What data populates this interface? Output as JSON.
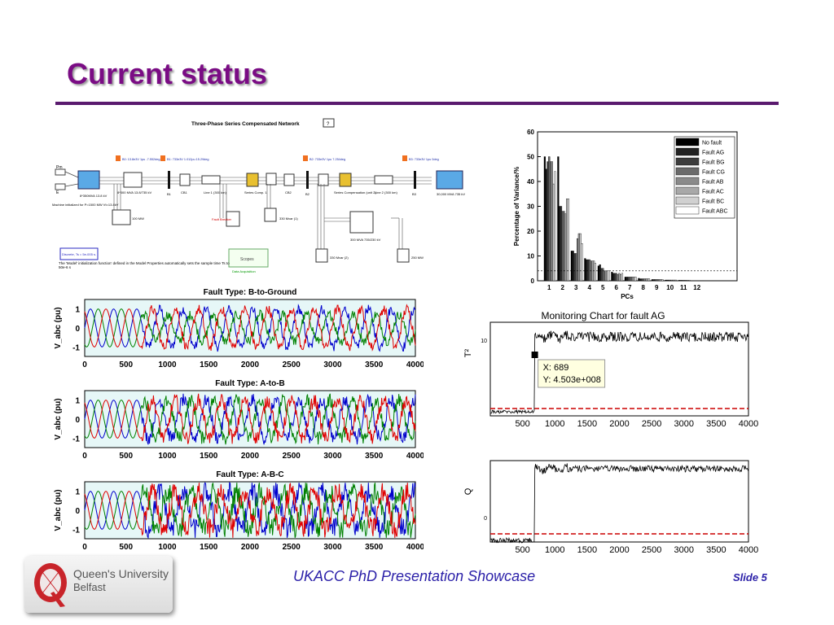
{
  "slide": {
    "title": "Current status",
    "footer": "UKACC PhD Presentation Showcase",
    "slide_number": "Slide 5",
    "logo": {
      "line1": "Queen's University",
      "line2": "Belfast"
    }
  },
  "colors": {
    "title": "#7a0c84",
    "rule": "#5a1a6e",
    "footer": "#2a1fa8",
    "phase_a": "#0000cc",
    "phase_b": "#008000",
    "phase_c": "#e00000",
    "limit": "#cc0000"
  },
  "diagram": {
    "title": "Three-Phase Series Compensated Network",
    "help_button": "?",
    "labels": {
      "pm": "Pm",
      "e": "E",
      "gen": "8*350MVA 13.8 kV",
      "machine_note": "Machine initialized for P=1500 MW Vt=13.8kV",
      "xfmr": "8*300 MVA 13.8/735 kV",
      "b1": "B1",
      "cb1": "CB1",
      "line1": "Line 1 (300 km)",
      "series_comp1": "Series Comp. 1",
      "cb2": "CB2",
      "b2": "B2",
      "series_comp2": "Series Compensation (unit 2)",
      "line2": "Line 2 (300 km)",
      "b3": "B3",
      "source": "30,000 MVA 735 kV",
      "load100": "100 MW",
      "fault_breaker": "Fault Breaker",
      "mvar330_1": "330 Mvar (1)",
      "mvar330_2": "330 Mvar (2)",
      "xfmr2": "300 MVA 735/230 kV",
      "load250": "250 MW",
      "scopes": "Scopes",
      "data_acq": "Data Acquisition",
      "discrete": "Discrete, Ts = 5e-005 s.",
      "init_note": "The 'Model' initialization function' defined in the Model Properties automatically sets the sample time Ts to 50e-6 s",
      "m_b0": "B0:\n13.8e3V\n1pu\n-7.552deg",
      "m_b1": "B1:\n733e3V\n1.012pu\n15.29deg",
      "m_b2": "B2:\n733e3V\n1pu\n7.254deg",
      "m_b3": "B3:\n733e3V\n1pu\n0deg"
    }
  },
  "chart_data": [
    {
      "type": "bar",
      "title": "",
      "xlabel": "PCs",
      "ylabel": "Percentage of Variance/%",
      "ylim": [
        0,
        60
      ],
      "yticks": [
        0,
        10,
        20,
        30,
        40,
        50,
        60
      ],
      "categories": [
        "1",
        "2",
        "3",
        "4",
        "5",
        "6",
        "7",
        "8",
        "9",
        "10",
        "11",
        "12"
      ],
      "threshold": 4,
      "legend_position": "top-right",
      "series": [
        {
          "name": "No fault",
          "color": "#000000",
          "values": [
            50,
            50,
            12,
            9,
            6,
            3.5,
            1.5,
            1,
            0.5,
            0.3,
            0.2,
            0.1
          ]
        },
        {
          "name": "Fault AG",
          "color": "#222222",
          "values": [
            45,
            30,
            12,
            8.5,
            6.5,
            3,
            1.5,
            0.8,
            0.5,
            0.3,
            0.2,
            0.1
          ]
        },
        {
          "name": "Fault BG",
          "color": "#3c3c3c",
          "values": [
            48,
            30,
            11,
            8.5,
            5,
            3,
            1.5,
            0.8,
            0.5,
            0.3,
            0.2,
            0.1
          ]
        },
        {
          "name": "Fault CG",
          "color": "#6a6a6a",
          "values": [
            50,
            28,
            11,
            8.5,
            5,
            3,
            1.5,
            0.8,
            0.5,
            0.3,
            0.2,
            0.1
          ]
        },
        {
          "name": "Fault AB",
          "color": "#8a8a8a",
          "values": [
            48,
            28,
            17,
            8,
            4,
            2.5,
            1.5,
            0.8,
            0.5,
            0.3,
            0.2,
            0.1
          ]
        },
        {
          "name": "Fault AC",
          "color": "#a8a8a8",
          "values": [
            48,
            27,
            19,
            8,
            4,
            3,
            1.5,
            0.8,
            0.5,
            0.3,
            0.2,
            0.1
          ]
        },
        {
          "name": "Fault BC",
          "color": "#d0d0d0",
          "values": [
            39,
            33,
            19,
            8,
            4,
            2.5,
            1.5,
            0.8,
            0.5,
            0.3,
            0.2,
            0.1
          ]
        },
        {
          "name": "Fault ABC",
          "color": "#ffffff",
          "values": [
            44,
            33,
            15,
            7,
            4,
            3,
            1.5,
            0.8,
            0.5,
            0.3,
            0.2,
            0.1
          ]
        }
      ]
    },
    {
      "type": "line",
      "title": "Fault Type: B-to-Ground",
      "ylabel": "V_abc (pu)",
      "xlim": [
        0,
        4000
      ],
      "ylim": [
        -1.5,
        1.5
      ],
      "xticks": [
        0,
        500,
        1000,
        1500,
        2000,
        2500,
        3000,
        3500,
        4000
      ],
      "yticks": [
        1,
        0,
        -1
      ],
      "fault_start": 690,
      "series": [
        {
          "name": "a",
          "color": "#0000cc"
        },
        {
          "name": "b",
          "color": "#008000"
        },
        {
          "name": "c",
          "color": "#e00000"
        }
      ]
    },
    {
      "type": "line",
      "title": "Fault Type: A-to-B",
      "ylabel": "V_abc (pu)",
      "xlim": [
        0,
        4000
      ],
      "ylim": [
        -1.5,
        1.5
      ],
      "xticks": [
        0,
        500,
        1000,
        1500,
        2000,
        2500,
        3000,
        3500,
        4000
      ],
      "yticks": [
        1,
        0,
        -1
      ],
      "fault_start": 690,
      "series": [
        {
          "name": "a",
          "color": "#0000cc"
        },
        {
          "name": "b",
          "color": "#008000"
        },
        {
          "name": "c",
          "color": "#e00000"
        }
      ]
    },
    {
      "type": "line",
      "title": "Fault Type: A-B-C",
      "ylabel": "V_abc (pu)",
      "xlim": [
        0,
        4000
      ],
      "ylim": [
        -1.5,
        1.5
      ],
      "xticks": [
        0,
        500,
        1000,
        1500,
        2000,
        2500,
        3000,
        3500,
        4000
      ],
      "yticks": [
        1,
        0,
        -1
      ],
      "fault_start": 690,
      "series": [
        {
          "name": "a",
          "color": "#0000cc"
        },
        {
          "name": "b",
          "color": "#008000"
        },
        {
          "name": "c",
          "color": "#e00000"
        }
      ]
    },
    {
      "type": "line",
      "title": "Monitoring Chart for fault AG",
      "ylabel": "T^2",
      "ytick_label": "10^10",
      "xlim": [
        0,
        4000
      ],
      "xticks": [
        500,
        1000,
        1500,
        2000,
        2500,
        3000,
        3500,
        4000
      ],
      "log_scale": true,
      "fault_start": 689,
      "control_limit": true,
      "datatip": {
        "x_label": "X: 689",
        "y_label": "Y: 4.503e+008",
        "x": 689,
        "y": 450300000
      }
    },
    {
      "type": "line",
      "title": "",
      "ylabel": "Q",
      "ytick_label": "10^0",
      "xlim": [
        0,
        4000
      ],
      "xticks": [
        500,
        1000,
        1500,
        2000,
        2500,
        3000,
        3500,
        4000
      ],
      "log_scale": true,
      "fault_start": 689,
      "control_limit": true
    }
  ]
}
